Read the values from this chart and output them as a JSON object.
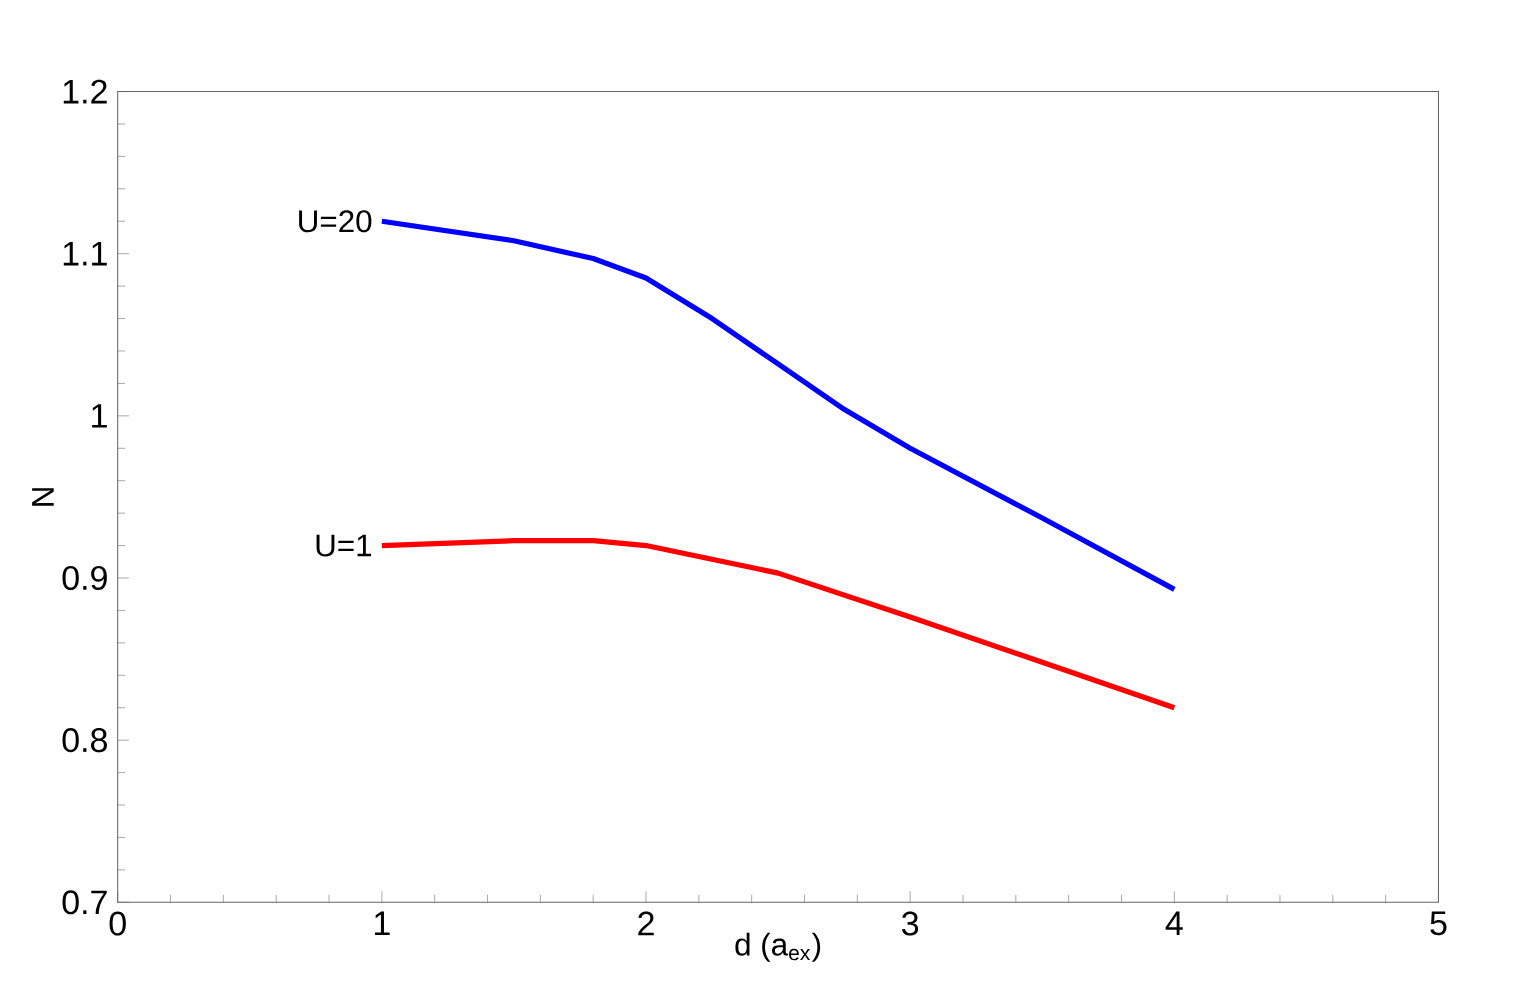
{
  "chart_data": {
    "type": "line",
    "xlabel": "d (a$_{ex}$)",
    "ylabel": "N",
    "xlim": [
      0,
      5
    ],
    "xticks": [
      0,
      1,
      2,
      3,
      4,
      5
    ],
    "ylim": [
      0.7,
      1.2
    ],
    "yticks": [
      0.7,
      0.8,
      0.9,
      1,
      1.1,
      1.2
    ],
    "grid": false,
    "legend": false,
    "marker": "none",
    "line_style": "solid",
    "series": [
      {
        "name": "U=20",
        "color": "#0000ff",
        "x": [
          1,
          1.5,
          1.8,
          2,
          2.25,
          2.5,
          2.75,
          3,
          3.5,
          4
        ],
        "values": [
          1.12,
          1.108,
          1.097,
          1.085,
          1.06,
          1.032,
          1.004,
          0.98,
          0.937,
          0.893
        ]
      },
      {
        "name": "U=1",
        "color": "#ff0000",
        "x": [
          1,
          1.5,
          1.8,
          2,
          2.5,
          3,
          3.5,
          4
        ],
        "values": [
          0.92,
          0.923,
          0.923,
          0.92,
          0.903,
          0.876,
          0.848,
          0.82
        ]
      }
    ]
  }
}
